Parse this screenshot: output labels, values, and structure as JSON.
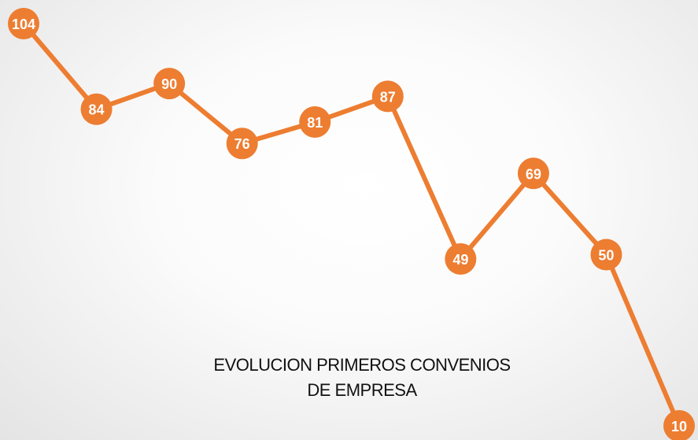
{
  "chart_data": {
    "type": "line",
    "title": "EVOLUCION PRIMEROS CONVENIOS DE EMPRESA",
    "values": [
      104,
      84,
      90,
      76,
      81,
      87,
      49,
      69,
      50,
      10
    ],
    "color": "#ed7d31"
  }
}
